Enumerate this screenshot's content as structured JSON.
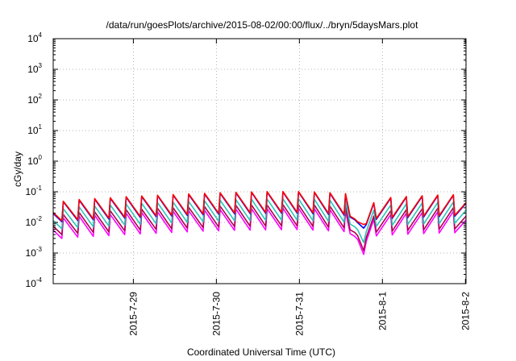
{
  "chart_data": {
    "type": "line",
    "title": "/data/run/goesPlots/archive/2015-08-02/00:00/flux/../bryn/5daysMars.plot",
    "xlabel": "Coordinated Universal Time (UTC)",
    "ylabel": "cGy/day",
    "x_is_time": true,
    "xlim": [
      "2015-07-28T00:50",
      "2015-08-02T00:10"
    ],
    "y_scale": "log",
    "ylim": [
      0.0001,
      10000
    ],
    "grid": true,
    "legend": "none",
    "x_ticks": [
      {
        "label": "2015-7-29",
        "value": "2015-07-29T00:00"
      },
      {
        "label": "2015-7-30",
        "value": "2015-07-30T00:00"
      },
      {
        "label": "2015-7-31",
        "value": "2015-07-31T00:00"
      },
      {
        "label": "2015-8-1",
        "value": "2015-08-01T00:00"
      },
      {
        "label": "2015-8-2",
        "value": "2015-08-02T00:00"
      }
    ],
    "y_ticks": [
      {
        "base": "10",
        "exp": "-4",
        "value": 0.0001
      },
      {
        "base": "10",
        "exp": "-3",
        "value": 0.001
      },
      {
        "base": "10",
        "exp": "-2",
        "value": 0.01
      },
      {
        "base": "10",
        "exp": "-1",
        "value": 0.1
      },
      {
        "base": "10",
        "exp": "0",
        "value": 1
      },
      {
        "base": "10",
        "exp": "1",
        "value": 10
      },
      {
        "base": "10",
        "exp": "2",
        "value": 100
      },
      {
        "base": "10",
        "exp": "3",
        "value": 1000
      },
      {
        "base": "10",
        "exp": "4",
        "value": 10000
      }
    ],
    "x": [
      "2015-07-28T00:50",
      "2015-07-28T03:20",
      "2015-07-28T03:45",
      "2015-07-28T07:55",
      "2015-07-28T08:20",
      "2015-07-28T12:25",
      "2015-07-28T12:50",
      "2015-07-28T16:55",
      "2015-07-28T17:20",
      "2015-07-28T21:30",
      "2015-07-28T21:55",
      "2015-07-29T02:00",
      "2015-07-29T02:25",
      "2015-07-29T06:35",
      "2015-07-29T07:00",
      "2015-07-29T11:05",
      "2015-07-29T11:30",
      "2015-07-29T15:35",
      "2015-07-29T16:00",
      "2015-07-29T20:10",
      "2015-07-29T20:35",
      "2015-07-30T00:40",
      "2015-07-30T01:05",
      "2015-07-30T05:15",
      "2015-07-30T05:40",
      "2015-07-30T09:45",
      "2015-07-30T10:10",
      "2015-07-30T14:15",
      "2015-07-30T14:40",
      "2015-07-30T18:50",
      "2015-07-30T19:15",
      "2015-07-30T23:20",
      "2015-07-30T23:45",
      "2015-07-31T03:55",
      "2015-07-31T04:20",
      "2015-07-31T08:25",
      "2015-07-31T08:50",
      "2015-07-31T12:55",
      "2015-07-31T13:20",
      "2015-07-31T14:40",
      "2015-07-31T16:00",
      "2015-07-31T16:50",
      "2015-07-31T18:35",
      "2015-07-31T19:20",
      "2015-07-31T21:30",
      "2015-07-31T22:15",
      "2015-08-01T02:25",
      "2015-08-01T02:50",
      "2015-08-01T06:55",
      "2015-08-01T07:20",
      "2015-08-01T11:30",
      "2015-08-01T11:55",
      "2015-08-01T16:00",
      "2015-08-01T16:25",
      "2015-08-01T20:30",
      "2015-08-01T20:55",
      "2015-08-02T00:10"
    ],
    "series": [
      {
        "color": "#ff00ff",
        "values": [
          0.0056,
          0.003,
          0.014,
          0.0033,
          0.016,
          0.0035,
          0.017,
          0.0037,
          0.018,
          0.004,
          0.02,
          0.0042,
          0.021,
          0.0044,
          0.022,
          0.0047,
          0.023,
          0.0049,
          0.024,
          0.0052,
          0.025,
          0.0053,
          0.026,
          0.0055,
          0.027,
          0.0056,
          0.028,
          0.0057,
          0.028,
          0.0058,
          0.029,
          0.0058,
          0.029,
          0.0056,
          0.028,
          0.0053,
          0.026,
          0.005,
          0.024,
          0.0043,
          0.0035,
          0.0028,
          0.0009,
          0.0024,
          0.0125,
          0.0036,
          0.018,
          0.0039,
          0.02,
          0.0041,
          0.021,
          0.0043,
          0.022,
          0.0045,
          0.023,
          0.0046,
          0.012
        ]
      },
      {
        "color": "#b0004f",
        "values": [
          0.0075,
          0.004,
          0.018,
          0.0044,
          0.021,
          0.0047,
          0.022,
          0.0049,
          0.024,
          0.0053,
          0.026,
          0.0056,
          0.027,
          0.0059,
          0.029,
          0.0062,
          0.03,
          0.0065,
          0.031,
          0.0068,
          0.033,
          0.0071,
          0.034,
          0.0073,
          0.036,
          0.0075,
          0.037,
          0.0076,
          0.037,
          0.0077,
          0.038,
          0.0077,
          0.038,
          0.0074,
          0.037,
          0.007,
          0.034,
          0.0066,
          0.032,
          0.0057,
          0.0047,
          0.0037,
          0.0012,
          0.0032,
          0.016,
          0.0048,
          0.024,
          0.0052,
          0.026,
          0.0055,
          0.028,
          0.0057,
          0.029,
          0.006,
          0.03,
          0.0061,
          0.016
        ]
      },
      {
        "color": "#2ec4b6",
        "values": [
          0.0115,
          0.0062,
          0.028,
          0.0068,
          0.032,
          0.0072,
          0.034,
          0.0076,
          0.037,
          0.0082,
          0.04,
          0.0086,
          0.042,
          0.0091,
          0.044,
          0.0096,
          0.046,
          0.01,
          0.048,
          0.0105,
          0.051,
          0.0109,
          0.053,
          0.0113,
          0.055,
          0.0115,
          0.057,
          0.0117,
          0.058,
          0.0119,
          0.059,
          0.0119,
          0.059,
          0.0114,
          0.057,
          0.0108,
          0.053,
          0.0102,
          0.049,
          0.0088,
          0.0072,
          0.0058,
          0.0022,
          0.005,
          0.025,
          0.0074,
          0.037,
          0.008,
          0.04,
          0.0085,
          0.043,
          0.0088,
          0.045,
          0.0092,
          0.046,
          0.0094,
          0.025
        ]
      },
      {
        "color": "#0000ff",
        "values": [
          0.0195,
          0.0105,
          0.047,
          0.0115,
          0.053,
          0.0122,
          0.057,
          0.0129,
          0.061,
          0.0138,
          0.066,
          0.0146,
          0.07,
          0.0154,
          0.074,
          0.0162,
          0.078,
          0.017,
          0.081,
          0.0178,
          0.085,
          0.0185,
          0.089,
          0.0191,
          0.092,
          0.0195,
          0.095,
          0.0198,
          0.097,
          0.02,
          0.098,
          0.0201,
          0.098,
          0.0193,
          0.095,
          0.0183,
          0.089,
          0.0172,
          0.083,
          0.0149,
          0.0122,
          0.0098,
          0.0065,
          0.0085,
          0.042,
          0.0126,
          0.062,
          0.0135,
          0.067,
          0.0143,
          0.071,
          0.0149,
          0.075,
          0.0155,
          0.077,
          0.0159,
          0.042
        ]
      },
      {
        "color": "#ff0000",
        "values": [
          0.021,
          0.0113,
          0.049,
          0.0123,
          0.056,
          0.013,
          0.06,
          0.0138,
          0.064,
          0.0148,
          0.069,
          0.0156,
          0.073,
          0.0165,
          0.077,
          0.0173,
          0.081,
          0.0181,
          0.085,
          0.019,
          0.089,
          0.0197,
          0.093,
          0.0204,
          0.096,
          0.0208,
          0.099,
          0.0211,
          0.101,
          0.0213,
          0.102,
          0.0214,
          0.102,
          0.0206,
          0.099,
          0.0195,
          0.093,
          0.0184,
          0.087,
          0.0159,
          0.013,
          0.0105,
          0.0085,
          0.0091,
          0.044,
          0.0135,
          0.065,
          0.0144,
          0.07,
          0.0153,
          0.074,
          0.0159,
          0.078,
          0.0165,
          0.08,
          0.017,
          0.044
        ]
      }
    ]
  }
}
